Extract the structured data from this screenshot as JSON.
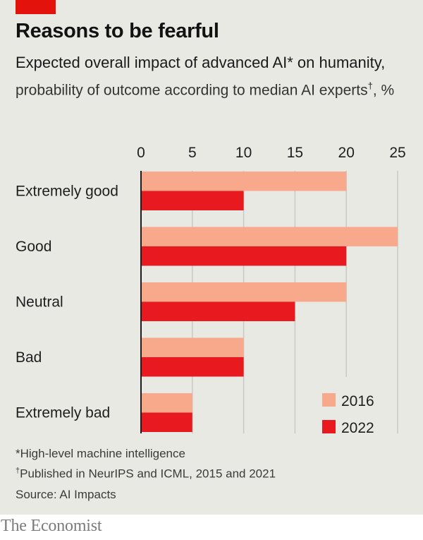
{
  "header": {
    "title": "Reasons to be fearful",
    "subtitle_bold": "Expected overall impact of advanced AI* on humanity,",
    "subtitle_light": " probability of outcome according to median AI experts",
    "subtitle_dagger": "†",
    "subtitle_suffix": ", %"
  },
  "footnotes": {
    "note1": "*High-level machine intelligence",
    "note2_mark": "†",
    "note2": "Published in NeurIPS and ICML, 2015 and 2021",
    "source": "Source: AI Impacts"
  },
  "brand": "The Economist",
  "colors": {
    "accent": "#e3120b",
    "series_2016": "#f9a98b",
    "series_2022": "#e8191f",
    "background": "#e9e9e4",
    "grid": "#c8c8c4",
    "axis": "#1e1e1e"
  },
  "chart_data": {
    "type": "bar",
    "orientation": "horizontal",
    "title": "Reasons to be fearful",
    "subtitle": "Expected overall impact of advanced AI* on humanity, probability of outcome according to median AI experts†, %",
    "xlabel": "",
    "ylabel": "",
    "xlim": [
      0,
      25
    ],
    "xticks": [
      0,
      5,
      10,
      15,
      20,
      25
    ],
    "tick_labels": [
      "0",
      "5",
      "10",
      "15",
      "20",
      "25"
    ],
    "grid": true,
    "legend_position": "bottom-right",
    "categories": [
      "Extremely good",
      "Good",
      "Neutral",
      "Bad",
      "Extremely bad"
    ],
    "series": [
      {
        "name": "2016",
        "color": "#f9a98b",
        "values": [
          20,
          25,
          20,
          10,
          5
        ]
      },
      {
        "name": "2022",
        "color": "#e8191f",
        "values": [
          10,
          20,
          15,
          10,
          5
        ]
      }
    ]
  }
}
